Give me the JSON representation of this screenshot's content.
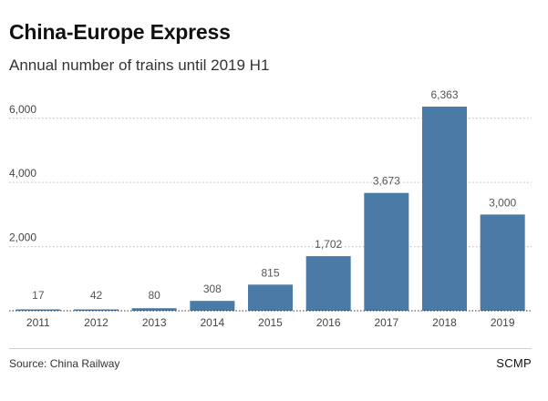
{
  "header": {
    "title": "China-Europe Express",
    "subtitle": "Annual number of trains until 2019 H1"
  },
  "footer": {
    "source": "Source: China Railway",
    "brand": "SCMP"
  },
  "chart_data": {
    "type": "bar",
    "categories": [
      "2011",
      "2012",
      "2013",
      "2014",
      "2015",
      "2016",
      "2017",
      "2018",
      "2019"
    ],
    "values": [
      17,
      42,
      80,
      308,
      815,
      1702,
      3673,
      6363,
      3000
    ],
    "value_labels": [
      "17",
      "42",
      "80",
      "308",
      "815",
      "1,702",
      "3,673",
      "6,363",
      "3,000"
    ],
    "y_ticks": [
      2000,
      4000,
      6000
    ],
    "y_tick_labels": [
      "2,000",
      "4,000",
      "6,000"
    ],
    "ylim": [
      0,
      6363
    ],
    "bar_color": "#4a7ba6",
    "grid": true,
    "grid_style": "dotted"
  }
}
